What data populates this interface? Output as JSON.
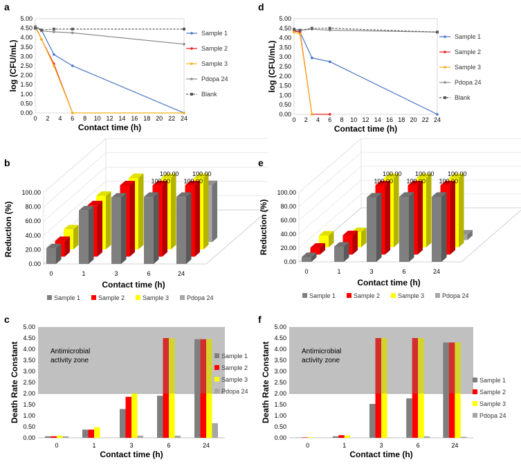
{
  "colors": {
    "sample1": "#7f7f7f",
    "sample2": "#ff0000",
    "sample3": "#ffff00",
    "pdopa": "#a6a6a6",
    "line1": "#4472c4",
    "line2": "#e81c1c",
    "line3": "#f5b016",
    "line4": "#8c8c8c",
    "line5": "#595959",
    "zone": "#c0c0c0"
  },
  "chart_data": [
    {
      "panel": "a",
      "type": "line",
      "xlabel": "Contact time (h)",
      "ylabel": "log (CFU/mL)",
      "xlim": [
        0,
        24
      ],
      "ylim": [
        0,
        5
      ],
      "xticks": [
        0,
        2,
        4,
        6,
        8,
        10,
        12,
        14,
        16,
        18,
        20,
        22,
        24
      ],
      "yticks": [
        "0.00",
        "0.50",
        "1.00",
        "1.50",
        "2.00",
        "2.50",
        "3.00",
        "3.50",
        "4.00",
        "4.50",
        "5.00"
      ],
      "series": [
        {
          "name": "Sample 1",
          "color": "#4472c4",
          "dash": false,
          "points": [
            [
              0,
              4.6
            ],
            [
              1,
              4.4
            ],
            [
              3,
              3.1
            ],
            [
              6,
              2.5
            ],
            [
              24,
              0
            ]
          ]
        },
        {
          "name": "Sample 2",
          "color": "#e81c1c",
          "dash": false,
          "points": [
            [
              0,
              4.6
            ],
            [
              1,
              3.9
            ],
            [
              3,
              2.6
            ],
            [
              6,
              0
            ]
          ]
        },
        {
          "name": "Sample 3",
          "color": "#f5b016",
          "dash": false,
          "points": [
            [
              0,
              4.55
            ],
            [
              1,
              3.9
            ],
            [
              3,
              2.5
            ],
            [
              6,
              0
            ],
            [
              24,
              0
            ]
          ]
        },
        {
          "name": "Pdopa 24",
          "color": "#8c8c8c",
          "dash": false,
          "points": [
            [
              0,
              4.6
            ],
            [
              1,
              4.35
            ],
            [
              3,
              4.3
            ],
            [
              6,
              4.25
            ],
            [
              24,
              3.65
            ]
          ]
        },
        {
          "name": "Blank",
          "color": "#595959",
          "dash": true,
          "points": [
            [
              0,
              4.5
            ],
            [
              1,
              4.4
            ],
            [
              3,
              4.45
            ],
            [
              6,
              4.45
            ],
            [
              24,
              4.45
            ]
          ]
        }
      ]
    },
    {
      "panel": "d",
      "type": "line",
      "xlabel": "Contact time (h)",
      "ylabel": "log (CFU/mL)",
      "xlim": [
        0,
        24
      ],
      "ylim": [
        0,
        5
      ],
      "xticks": [
        0,
        2,
        4,
        6,
        8,
        10,
        12,
        14,
        16,
        18,
        20,
        22,
        24
      ],
      "yticks": [
        "0.00",
        "0.50",
        "1.00",
        "1.50",
        "2.00",
        "2.50",
        "3.00",
        "3.50",
        "4.00",
        "4.50",
        "5.00"
      ],
      "series": [
        {
          "name": "Sample 1",
          "color": "#4472c4",
          "dash": false,
          "points": [
            [
              0,
              4.4
            ],
            [
              1,
              4.3
            ],
            [
              3,
              2.95
            ],
            [
              6,
              2.75
            ],
            [
              24,
              0
            ]
          ]
        },
        {
          "name": "Sample 2",
          "color": "#e81c1c",
          "dash": false,
          "points": [
            [
              0,
              4.35
            ],
            [
              1,
              4.3
            ],
            [
              3,
              0
            ],
            [
              6,
              0
            ]
          ]
        },
        {
          "name": "Sample 3",
          "color": "#f5b016",
          "dash": false,
          "points": [
            [
              0,
              4.3
            ],
            [
              1,
              4.2
            ],
            [
              3,
              0
            ]
          ]
        },
        {
          "name": "Pdopa 24",
          "color": "#8c8c8c",
          "dash": false,
          "points": [
            [
              0,
              4.45
            ],
            [
              1,
              4.4
            ],
            [
              3,
              4.45
            ],
            [
              6,
              4.4
            ],
            [
              24,
              4.3
            ]
          ]
        },
        {
          "name": "Blank",
          "color": "#595959",
          "dash": true,
          "points": [
            [
              0,
              4.45
            ],
            [
              1,
              4.4
            ],
            [
              3,
              4.5
            ],
            [
              6,
              4.5
            ],
            [
              24,
              4.3
            ]
          ]
        }
      ]
    },
    {
      "panel": "b",
      "type": "bar",
      "xlabel": "Contact time (h)",
      "ylabel": "Reduction (%)",
      "ylim": [
        0,
        100
      ],
      "yticks": [
        "0.00",
        "20.00",
        "40.00",
        "60.00",
        "80.00",
        "100.00"
      ],
      "categories": [
        "0",
        "1",
        "3",
        "6",
        "24"
      ],
      "series": [
        {
          "name": "Sample 1",
          "values": [
            22,
            75,
            93,
            94,
            94
          ]
        },
        {
          "name": "Sample 2",
          "values": [
            22,
            72,
            100,
            100,
            100
          ]
        },
        {
          "name": "Sample 3",
          "values": [
            28,
            75,
            100,
            100,
            100
          ]
        },
        {
          "name": "Pdopa 24",
          "values": [
            0,
            0,
            0,
            0,
            80
          ]
        }
      ],
      "data_labels": [
        {
          "series": 1,
          "cat": 3,
          "text": "100.00"
        },
        {
          "series": 1,
          "cat": 4,
          "text": "100.00"
        },
        {
          "series": 2,
          "cat": 3,
          "text": "100.00"
        },
        {
          "series": 2,
          "cat": 4,
          "text": "100.00"
        }
      ]
    },
    {
      "panel": "e",
      "type": "bar",
      "xlabel": "Contact time (h)",
      "ylabel": "Reduction (%)",
      "ylim": [
        0,
        100
      ],
      "yticks": [
        "0.00",
        "20.00",
        "40.00",
        "60.00",
        "80.00",
        "100.00"
      ],
      "categories": [
        "0",
        "1",
        "3",
        "6",
        "24"
      ],
      "series": [
        {
          "name": "Sample 1",
          "values": [
            7,
            22,
            93,
            94,
            94
          ]
        },
        {
          "name": "Sample 2",
          "values": [
            10,
            28,
            100,
            100,
            100
          ]
        },
        {
          "name": "Sample 3",
          "values": [
            17,
            22,
            100,
            100,
            100
          ]
        },
        {
          "name": "Pdopa 24",
          "values": [
            0,
            0,
            0,
            0,
            8
          ]
        }
      ],
      "data_labels": [
        {
          "series": 1,
          "cat": 2,
          "text": "100.00"
        },
        {
          "series": 1,
          "cat": 3,
          "text": "100.00"
        },
        {
          "series": 1,
          "cat": 4,
          "text": "100.00"
        },
        {
          "series": 2,
          "cat": 2,
          "text": "100.00"
        },
        {
          "series": 2,
          "cat": 3,
          "text": "100.00"
        },
        {
          "series": 2,
          "cat": 4,
          "text": "100.00"
        }
      ]
    },
    {
      "panel": "c",
      "type": "bar",
      "xlabel": "Contact time (h)",
      "ylabel": "Death Rate Constant",
      "ylim": [
        0,
        5
      ],
      "yticks": [
        "0.00",
        "0.50",
        "1.00",
        "1.50",
        "2.00",
        "2.50",
        "3.00",
        "3.50",
        "4.00",
        "4.50",
        "5.00"
      ],
      "zone_from": 2,
      "zone_label": "Antimicrobial\nactivity zone",
      "categories": [
        "0",
        "1",
        "3",
        "6",
        "24"
      ],
      "series": [
        {
          "name": "Sample 1",
          "values": [
            0.07,
            0.37,
            1.3,
            1.9,
            4.45
          ]
        },
        {
          "name": "Sample 2",
          "values": [
            0.07,
            0.37,
            1.85,
            4.5,
            4.45
          ]
        },
        {
          "name": "Sample 3",
          "values": [
            0.1,
            0.48,
            2.0,
            4.5,
            4.45
          ]
        },
        {
          "name": "Pdopa 24",
          "values": [
            0.07,
            0,
            0.1,
            0.1,
            0.66
          ]
        }
      ]
    },
    {
      "panel": "f",
      "type": "bar",
      "xlabel": "Contact time (h)",
      "ylabel": "Death Rate Constant",
      "ylim": [
        0,
        5
      ],
      "yticks": [
        "0.00",
        "0.50",
        "1.00",
        "1.50",
        "2.00",
        "2.50",
        "3.00",
        "3.50",
        "4.00",
        "4.50",
        "5.00"
      ],
      "zone_from": 2,
      "zone_label": "Antimicrobial\nactivity zone",
      "categories": [
        "0",
        "1",
        "3",
        "6",
        "24"
      ],
      "series": [
        {
          "name": "Sample 1",
          "values": [
            0.01,
            0.07,
            1.53,
            1.78,
            4.3
          ]
        },
        {
          "name": "Sample 2",
          "values": [
            0.02,
            0.12,
            4.5,
            4.5,
            4.3
          ]
        },
        {
          "name": "Sample 3",
          "values": [
            0.03,
            0.1,
            4.5,
            4.5,
            4.3
          ]
        },
        {
          "name": "Pdopa 24",
          "values": [
            0.01,
            0,
            0.01,
            0.07,
            0.05
          ]
        }
      ]
    }
  ]
}
